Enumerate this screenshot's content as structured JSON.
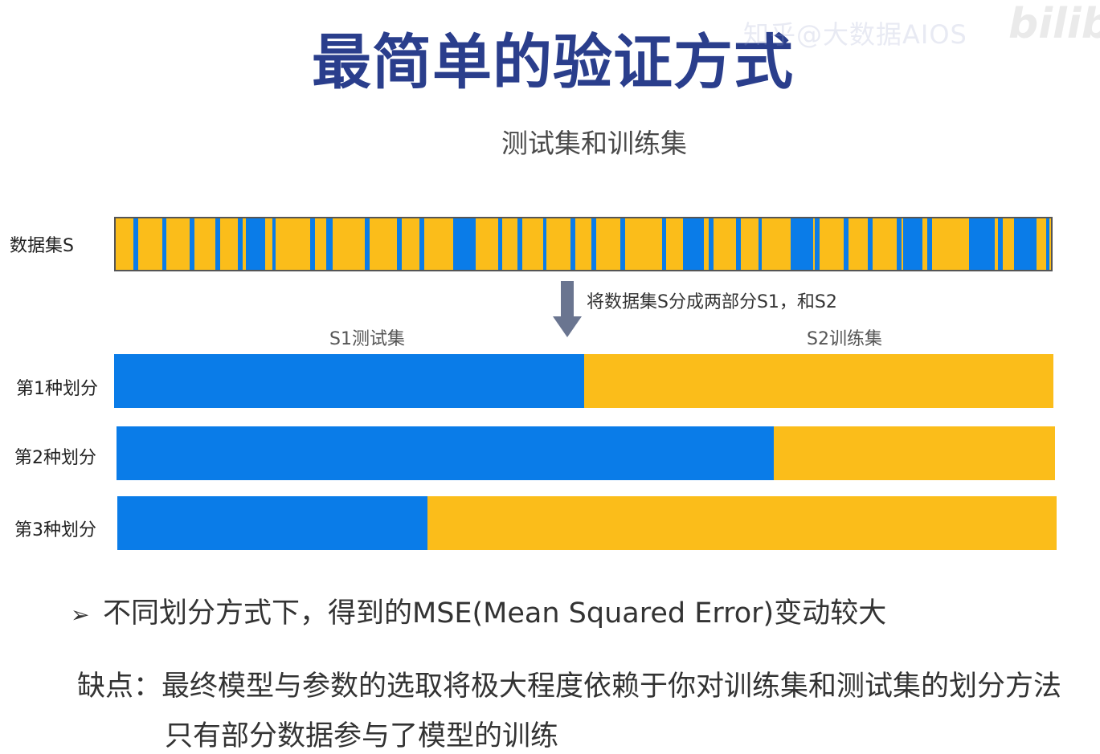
{
  "title": "最简单的验证方式",
  "watermark": {
    "text": "知乎@大数据AIOS",
    "logo": "bilibili"
  },
  "subtitle": "测试集和训练集",
  "dataset": {
    "label": "数据集S",
    "train_color": "#fbbd1a",
    "test_color": "#0a7ce8"
  },
  "split_caption": "将数据集S分成两部分S1，和S2",
  "part_labels": {
    "test": "S1测试集",
    "train": "S2训练集"
  },
  "splits": [
    {
      "label": "第1种划分",
      "test_fraction": 0.5
    },
    {
      "label": "第2种划分",
      "test_fraction": 0.7
    },
    {
      "label": "第3种划分",
      "test_fraction": 0.33
    }
  ],
  "bullet": {
    "icon": "arrow-bullet-icon",
    "text": "不同划分方式下，得到的MSE(Mean Squared Error)变动较大"
  },
  "cons": {
    "line1": "缺点：最终模型与参数的选取将极大程度依赖于你对训练集和测试集的划分方法",
    "line2": "只有部分数据参与了模型的训练"
  }
}
